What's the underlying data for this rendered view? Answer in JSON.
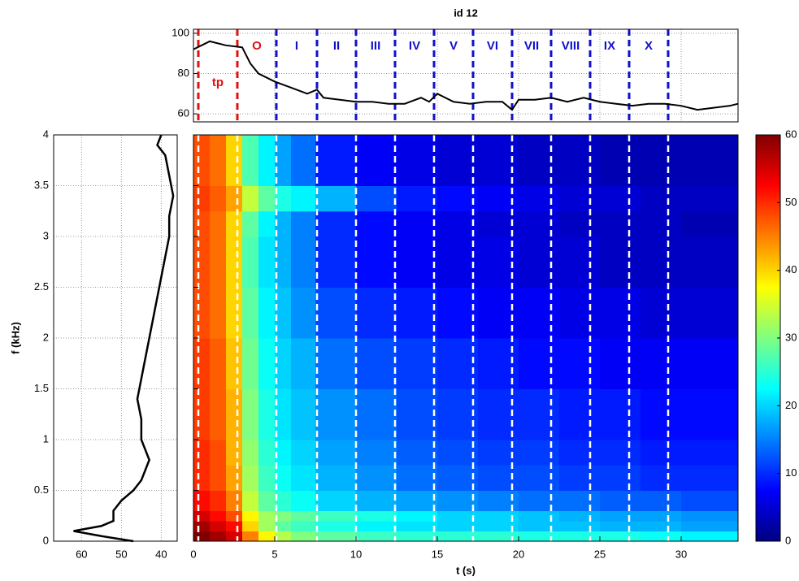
{
  "chart_data": [
    {
      "type": "line",
      "title": "id 12",
      "color": "#000000",
      "grid": true,
      "x": [
        0,
        0.5,
        1,
        2,
        3,
        3.5,
        4,
        5,
        6,
        7,
        7.6,
        8,
        9,
        10,
        11,
        12,
        13,
        14,
        14.5,
        15,
        16,
        17,
        18,
        19,
        19.6,
        20,
        21,
        22,
        23,
        24,
        25,
        26,
        27,
        28,
        29,
        30,
        31,
        32,
        33,
        33.5
      ],
      "values": [
        92,
        94,
        96,
        94,
        93,
        85,
        80,
        76,
        73,
        70,
        72,
        68,
        67,
        66,
        66,
        65,
        65,
        68,
        66,
        70,
        66,
        65,
        66,
        66,
        62,
        67,
        67,
        68,
        66,
        68,
        66,
        65,
        64,
        65,
        65,
        64,
        62,
        63,
        64,
        65
      ],
      "xlim": [
        0,
        33.5
      ],
      "ylim": [
        56,
        102
      ],
      "yticks": [
        60,
        80,
        100
      ],
      "events": [
        0.3,
        2.7,
        5.1,
        7.6,
        10.0,
        12.4,
        14.8,
        17.2,
        19.6,
        22.0,
        24.4,
        26.8,
        29.2
      ],
      "event_colors": [
        "#dd1111",
        "#dd1111",
        "#1111cc",
        "#1111cc",
        "#1111cc",
        "#1111cc",
        "#1111cc",
        "#1111cc",
        "#1111cc",
        "#1111cc",
        "#1111cc",
        "#1111cc",
        "#1111cc"
      ],
      "region_labels": [
        "tp",
        "O",
        "I",
        "II",
        "III",
        "IV",
        "V",
        "VI",
        "VII",
        "VIII",
        "IX",
        "X"
      ]
    },
    {
      "type": "profile",
      "color": "#000000",
      "grid": true,
      "ylabel": "f (kHz)",
      "y": [
        0,
        0.05,
        0.1,
        0.15,
        0.2,
        0.3,
        0.4,
        0.5,
        0.6,
        0.7,
        0.8,
        1.0,
        1.2,
        1.4,
        1.6,
        1.8,
        2.0,
        2.2,
        2.4,
        2.6,
        2.8,
        3.0,
        3.2,
        3.4,
        3.6,
        3.8,
        3.9,
        4.0
      ],
      "values": [
        47,
        55,
        62,
        55,
        52,
        52,
        50,
        47,
        45,
        44,
        43,
        45,
        45,
        46,
        45,
        44,
        43,
        42,
        41,
        40,
        39,
        38,
        38,
        37,
        38,
        39,
        41,
        40
      ],
      "xlim": [
        67,
        36
      ],
      "xticks": [
        60,
        50,
        40
      ],
      "ylim": [
        0,
        4
      ],
      "yticks": [
        0,
        0.5,
        1,
        1.5,
        2,
        2.5,
        3,
        3.5,
        4
      ]
    },
    {
      "type": "heatmap",
      "colormap": "jet",
      "xlabel": "t (s)",
      "xlim": [
        0,
        33.5
      ],
      "xticks": [
        0,
        5,
        10,
        15,
        20,
        25,
        30
      ],
      "ylim": [
        0,
        4
      ],
      "x_edges": [
        0,
        1,
        2,
        3,
        4,
        5,
        6,
        7.5,
        10,
        12.5,
        15,
        17.5,
        20,
        22.5,
        25,
        27.5,
        30,
        33.5
      ],
      "y_edges": [
        0,
        0.1,
        0.2,
        0.3,
        0.5,
        0.75,
        1,
        1.5,
        2,
        2.5,
        3,
        3.25,
        3.5,
        4
      ],
      "values": [
        [
          60,
          58,
          55,
          45,
          38,
          33,
          30,
          28,
          26,
          25,
          25,
          25,
          24,
          24,
          24,
          23,
          22
        ],
        [
          58,
          55,
          52,
          40,
          32,
          28,
          26,
          24,
          22,
          21,
          20,
          20,
          19,
          19,
          18,
          18,
          17
        ],
        [
          55,
          52,
          48,
          38,
          32,
          30,
          28,
          26,
          24,
          22,
          20,
          20,
          19,
          18,
          17,
          17,
          16
        ],
        [
          52,
          50,
          45,
          34,
          28,
          25,
          23,
          20,
          18,
          17,
          16,
          15,
          14,
          14,
          13,
          13,
          12
        ],
        [
          50,
          48,
          43,
          32,
          26,
          23,
          21,
          18,
          16,
          14,
          13,
          12,
          12,
          11,
          11,
          10,
          10
        ],
        [
          50,
          48,
          42,
          31,
          25,
          22,
          20,
          17,
          15,
          13,
          12,
          11,
          11,
          10,
          10,
          9,
          9
        ],
        [
          49,
          47,
          42,
          30,
          24,
          21,
          19,
          16,
          14,
          12,
          11,
          10,
          10,
          9,
          9,
          8,
          8
        ],
        [
          49,
          47,
          41,
          29,
          23,
          20,
          18,
          14,
          12,
          11,
          10,
          9,
          8,
          8,
          7,
          7,
          7
        ],
        [
          48,
          46,
          40,
          28,
          22,
          19,
          16,
          12,
          10,
          9,
          8,
          7,
          7,
          6,
          6,
          5,
          5
        ],
        [
          48,
          46,
          40,
          27,
          21,
          18,
          15,
          10,
          8,
          7,
          6,
          6,
          5,
          5,
          4,
          4,
          4
        ],
        [
          48,
          46,
          40,
          28,
          22,
          18,
          15,
          10,
          8,
          7,
          6,
          5,
          5,
          4,
          4,
          4,
          3
        ],
        [
          49,
          47,
          43,
          34,
          28,
          24,
          22,
          18,
          12,
          9,
          8,
          7,
          6,
          5,
          5,
          4,
          4
        ],
        [
          48,
          46,
          40,
          27,
          22,
          17,
          14,
          9,
          7,
          6,
          5,
          5,
          4,
          4,
          3,
          3,
          3
        ]
      ]
    },
    {
      "type": "colorbar",
      "clim": [
        0,
        60
      ],
      "ticks": [
        0,
        10,
        20,
        30,
        40,
        50,
        60
      ]
    }
  ]
}
